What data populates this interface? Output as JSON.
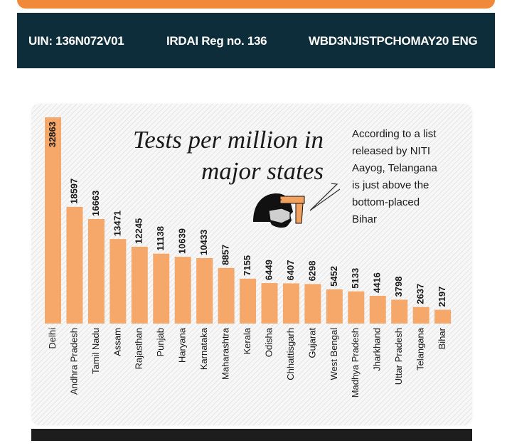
{
  "banner": {
    "uin": "UIN: 136N072V01",
    "irdai": "IRDAI Reg no. 136",
    "code": "WBD3NJISTPCHOMAY20 ENG"
  },
  "colors": {
    "bar": "#f5a869",
    "banner_bg": "#0e2d3a",
    "accent_orange": "#f08a3a"
  },
  "icons": [
    "person-with-mask-icon",
    "thermometer-gun-icon"
  ],
  "chart_data": {
    "type": "bar",
    "title_line1": "Tests per million in",
    "title_line2": "major states",
    "annotation_lines": [
      "According to a list",
      "released by NITI",
      "Aayog, Telangana",
      "is just above the",
      "bottom-placed",
      "Bihar"
    ],
    "categories": [
      "Delhi",
      "Andhra Pradesh",
      "Tamil Nadu",
      "Assam",
      "Rajasthan",
      "Punjab",
      "Haryana",
      "Karnataka",
      "Maharashtra",
      "Kerala",
      "Odisha",
      "Chhattisgarh",
      "Gujarat",
      "West Bengal",
      "Madhya Pradesh",
      "Jharkhand",
      "Uttar Pradesh",
      "Telangana",
      "Bihar"
    ],
    "values": [
      32863,
      18597,
      16663,
      13471,
      12245,
      11138,
      10639,
      10433,
      8857,
      7155,
      6449,
      6407,
      6298,
      5452,
      5133,
      4416,
      3798,
      2637,
      2197
    ],
    "ylim": [
      0,
      32863
    ],
    "grid": false,
    "legend": "none"
  }
}
